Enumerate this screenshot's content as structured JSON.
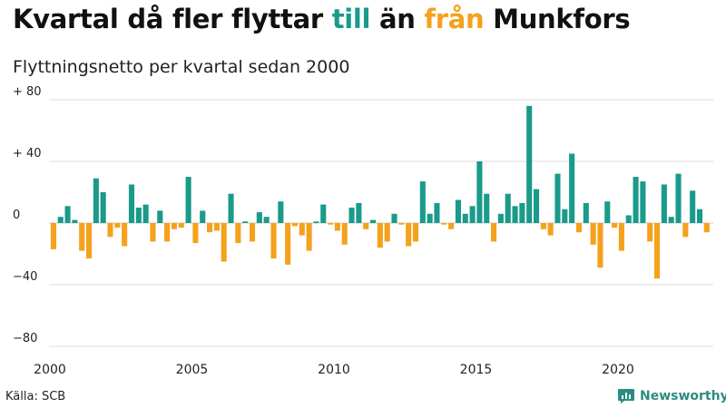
{
  "title": {
    "prefix": "Kvartal då fler flyttar",
    "till": "till",
    "middle": "än",
    "fran": "från",
    "suffix": "Munkfors"
  },
  "subtitle": "Flyttningsnetto per kvartal sedan 2000",
  "source": "Källa: SCB",
  "brand": "Newsworthy",
  "colors": {
    "positive": "#1a9a8a",
    "negative": "#f5a11c",
    "brand": "#2a8c82",
    "grid": "#dddddd"
  },
  "chart_data": {
    "type": "bar",
    "ylim": [
      -80,
      80
    ],
    "yticks": [
      -80,
      -40,
      0,
      40,
      80
    ],
    "ytick_labels": [
      "−80",
      "−40",
      "0",
      "+ 40",
      "+ 80"
    ],
    "xtick_labels": [
      "2000",
      "2005",
      "2010",
      "2015",
      "2020"
    ],
    "xtick_positions": [
      2000,
      2005,
      2010,
      2015,
      2020
    ],
    "start_year": 2000,
    "values": [
      -17,
      4,
      11,
      2,
      -18,
      -23,
      29,
      20,
      -9,
      -3,
      -15,
      25,
      10,
      12,
      -12,
      8,
      -12,
      -4,
      -3,
      30,
      -13,
      8,
      -6,
      -5,
      -25,
      19,
      -13,
      1,
      -12,
      7,
      4,
      -23,
      14,
      -27,
      -2,
      -8,
      -18,
      1,
      12,
      -1,
      -5,
      -14,
      10,
      13,
      -4,
      2,
      -16,
      -12,
      6,
      -1,
      -15,
      -12,
      27,
      6,
      13,
      -1,
      -4,
      15,
      6,
      11,
      40,
      19,
      -12,
      6,
      19,
      11,
      13,
      76,
      22,
      -4,
      -8,
      32,
      9,
      45,
      -6,
      13,
      -14,
      -29,
      14,
      -3,
      -18,
      5,
      30,
      27,
      -12,
      -36,
      25,
      4,
      32,
      -9,
      21,
      9,
      -6
    ]
  }
}
